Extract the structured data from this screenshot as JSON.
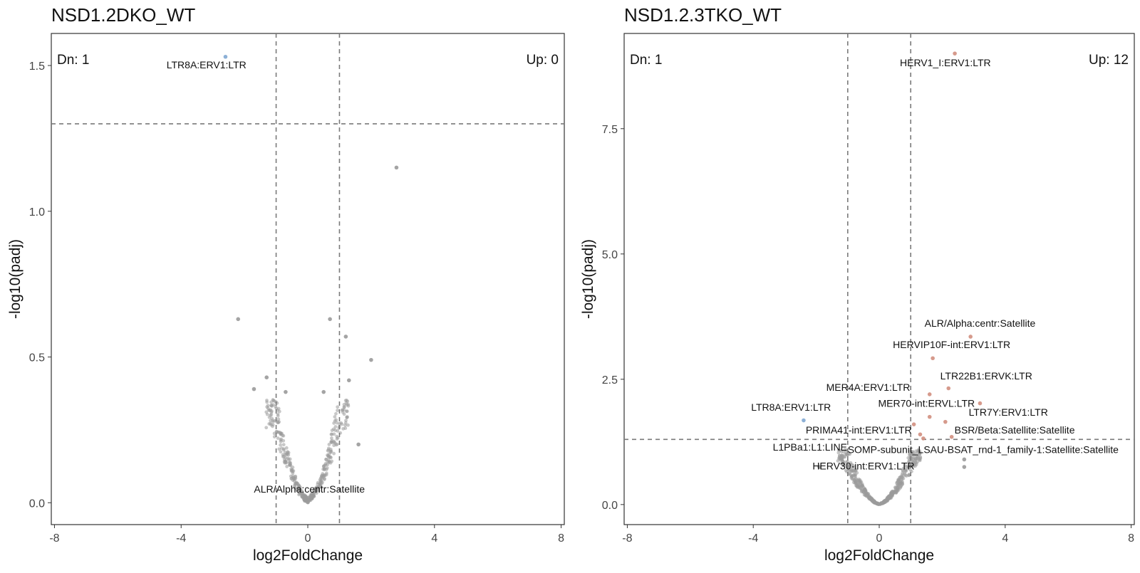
{
  "chart_data": [
    {
      "type": "scatter",
      "title": "NSD1.2DKO_WT",
      "xlabel": "log2FoldChange",
      "ylabel": "-log10(padj)",
      "xlim": [
        -8.1,
        8.1
      ],
      "ylim": [
        -0.075,
        1.61
      ],
      "xticks": [
        -8,
        -4,
        0,
        4,
        8
      ],
      "xtick_labels": [
        "-8",
        "-4",
        "0",
        "4",
        "8"
      ],
      "yticks": [
        0.0,
        0.5,
        1.0,
        1.5
      ],
      "ytick_labels": [
        "0.0",
        "0.5",
        "1.0",
        "1.5"
      ],
      "vlines": [
        -1,
        1
      ],
      "hline": 1.3,
      "dn_label": "Dn: 1",
      "up_label": "Up: 0",
      "colors": {
        "down": "#7FA7D2",
        "up": "#D28F7F",
        "ns": "#9A9A9A",
        "guide": "#7A7A7A"
      },
      "seed": 11,
      "background_count": 420,
      "highlighted_points": [
        {
          "x": -2.6,
          "y": 1.53,
          "status": "down"
        },
        {
          "x": 2.8,
          "y": 1.15,
          "status": "ns"
        },
        {
          "x": -2.2,
          "y": 0.63,
          "status": "ns"
        },
        {
          "x": 0.7,
          "y": 0.63,
          "status": "ns"
        },
        {
          "x": 1.2,
          "y": 0.57,
          "status": "ns"
        },
        {
          "x": 2.0,
          "y": 0.49,
          "status": "ns"
        },
        {
          "x": -1.7,
          "y": 0.39,
          "status": "ns"
        },
        {
          "x": -1.3,
          "y": 0.43,
          "status": "ns"
        },
        {
          "x": 1.3,
          "y": 0.42,
          "status": "ns"
        },
        {
          "x": 1.6,
          "y": 0.2,
          "status": "ns"
        },
        {
          "x": -0.7,
          "y": 0.38,
          "status": "ns"
        },
        {
          "x": 0.5,
          "y": 0.38,
          "status": "ns"
        }
      ],
      "labels": [
        {
          "text": "LTR8A:ERV1:LTR",
          "x": -3.2,
          "y": 1.49
        },
        {
          "text": "ALR/Alpha:centr:Satellite",
          "x": 0.05,
          "y": 0.035
        }
      ]
    },
    {
      "type": "scatter",
      "title": "NSD1.2.3TKO_WT",
      "xlabel": "log2FoldChange",
      "ylabel": "-log10(padj)",
      "xlim": [
        -8.1,
        8.1
      ],
      "ylim": [
        -0.4,
        9.4
      ],
      "xticks": [
        -8,
        -4,
        0,
        4,
        8
      ],
      "xtick_labels": [
        "-8",
        "-4",
        "0",
        "4",
        "8"
      ],
      "yticks": [
        0.0,
        2.5,
        5.0,
        7.5
      ],
      "ytick_labels": [
        "0.0",
        "2.5",
        "5.0",
        "7.5"
      ],
      "vlines": [
        -1,
        1
      ],
      "hline": 1.3,
      "dn_label": "Dn: 1",
      "up_label": "Up: 12",
      "colors": {
        "down": "#7FA7D2",
        "up": "#D28F7F",
        "ns": "#9A9A9A",
        "guide": "#7A7A7A"
      },
      "seed": 29,
      "background_count": 520,
      "highlighted_points": [
        {
          "x": 2.4,
          "y": 9.0,
          "status": "up"
        },
        {
          "x": 2.9,
          "y": 3.35,
          "status": "up"
        },
        {
          "x": 1.7,
          "y": 2.92,
          "status": "up"
        },
        {
          "x": 2.2,
          "y": 2.32,
          "status": "up"
        },
        {
          "x": 1.6,
          "y": 2.2,
          "status": "up"
        },
        {
          "x": 3.2,
          "y": 2.02,
          "status": "up"
        },
        {
          "x": 1.6,
          "y": 1.75,
          "status": "up"
        },
        {
          "x": 2.1,
          "y": 1.65,
          "status": "up"
        },
        {
          "x": 1.1,
          "y": 1.6,
          "status": "up"
        },
        {
          "x": 1.3,
          "y": 1.4,
          "status": "up"
        },
        {
          "x": 2.3,
          "y": 1.35,
          "status": "up"
        },
        {
          "x": 1.4,
          "y": 1.32,
          "status": "up"
        },
        {
          "x": -2.4,
          "y": 1.68,
          "status": "down"
        },
        {
          "x": -1.9,
          "y": 0.75,
          "status": "ns"
        },
        {
          "x": 2.7,
          "y": 0.9,
          "status": "ns"
        },
        {
          "x": 2.7,
          "y": 0.75,
          "status": "ns"
        }
      ],
      "labels": [
        {
          "text": "HERV1_I:ERV1:LTR",
          "x": 2.1,
          "y": 8.75
        },
        {
          "text": "ALR/Alpha:centr:Satellite",
          "x": 3.2,
          "y": 3.55
        },
        {
          "text": "HERVIP10F-int:ERV1:LTR",
          "x": 2.3,
          "y": 3.12
        },
        {
          "text": "LTR22B1:ERVK:LTR",
          "x": 3.4,
          "y": 2.5
        },
        {
          "text": "MER4A:ERV1:LTR",
          "x": -0.35,
          "y": 2.27
        },
        {
          "text": "MER70-int:ERVL:LTR",
          "x": 1.5,
          "y": 1.95
        },
        {
          "text": "LTR7Y:ERV1:LTR",
          "x": 4.1,
          "y": 1.77
        },
        {
          "text": "LTR8A:ERV1:LTR",
          "x": -2.8,
          "y": 1.87
        },
        {
          "text": "PRIMA41-int:ERV1:LTR",
          "x": -0.65,
          "y": 1.42
        },
        {
          "text": "BSR/Beta:Satellite:Satellite",
          "x": 4.3,
          "y": 1.42
        },
        {
          "text": "L1PBa1:L1:LINE",
          "x": -2.2,
          "y": 1.08
        },
        {
          "text": "SOMP-subunit_LSAU-BSAT_rnd-1_family-1:Satellite:Satellite",
          "x": 3.3,
          "y": 1.03
        },
        {
          "text": "HERV30-int:ERV1:LTR",
          "x": -0.5,
          "y": 0.7
        }
      ]
    }
  ]
}
